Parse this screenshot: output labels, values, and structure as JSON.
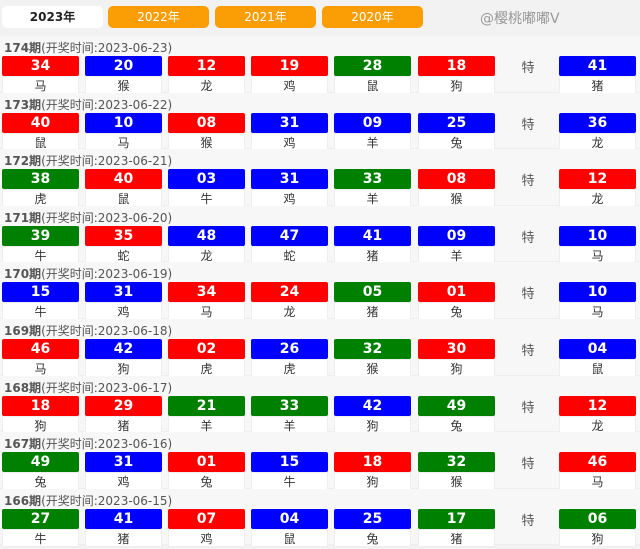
{
  "colors": {
    "red": "#ff0000",
    "blue": "#0000ff",
    "green": "#008000",
    "tab_orange": "#fb9d05"
  },
  "tabs": [
    {
      "label": "2023年",
      "active": true
    },
    {
      "label": "2022年"
    },
    {
      "label": "2021年"
    },
    {
      "label": "2020年"
    }
  ],
  "special_label": "特",
  "draws": [
    {
      "period": "174期",
      "time": "(开奖时间:2023-06-23)",
      "balls": [
        [
          "34",
          "red",
          "马"
        ],
        [
          "20",
          "blue",
          "猴"
        ],
        [
          "12",
          "red",
          "龙"
        ],
        [
          "19",
          "red",
          "鸡"
        ],
        [
          "28",
          "green",
          "鼠"
        ],
        [
          "18",
          "red",
          "狗"
        ]
      ],
      "special": [
        "41",
        "blue",
        "猪"
      ]
    },
    {
      "period": "173期",
      "time": "(开奖时间:2023-06-22)",
      "balls": [
        [
          "40",
          "red",
          "鼠"
        ],
        [
          "10",
          "blue",
          "马"
        ],
        [
          "08",
          "red",
          "猴"
        ],
        [
          "31",
          "blue",
          "鸡"
        ],
        [
          "09",
          "blue",
          "羊"
        ],
        [
          "25",
          "blue",
          "兔"
        ]
      ],
      "special": [
        "36",
        "blue",
        "龙"
      ]
    },
    {
      "period": "172期",
      "time": "(开奖时间:2023-06-21)",
      "balls": [
        [
          "38",
          "green",
          "虎"
        ],
        [
          "40",
          "red",
          "鼠"
        ],
        [
          "03",
          "blue",
          "牛"
        ],
        [
          "31",
          "blue",
          "鸡"
        ],
        [
          "33",
          "green",
          "羊"
        ],
        [
          "08",
          "red",
          "猴"
        ]
      ],
      "special": [
        "12",
        "red",
        "龙"
      ]
    },
    {
      "period": "171期",
      "time": "(开奖时间:2023-06-20)",
      "balls": [
        [
          "39",
          "green",
          "牛"
        ],
        [
          "35",
          "red",
          "蛇"
        ],
        [
          "48",
          "blue",
          "龙"
        ],
        [
          "47",
          "blue",
          "蛇"
        ],
        [
          "41",
          "blue",
          "猪"
        ],
        [
          "09",
          "blue",
          "羊"
        ]
      ],
      "special": [
        "10",
        "blue",
        "马"
      ]
    },
    {
      "period": "170期",
      "time": "(开奖时间:2023-06-19)",
      "balls": [
        [
          "15",
          "blue",
          "牛"
        ],
        [
          "31",
          "blue",
          "鸡"
        ],
        [
          "34",
          "red",
          "马"
        ],
        [
          "24",
          "red",
          "龙"
        ],
        [
          "05",
          "green",
          "猪"
        ],
        [
          "01",
          "red",
          "兔"
        ]
      ],
      "special": [
        "10",
        "blue",
        "马"
      ]
    },
    {
      "period": "169期",
      "time": "(开奖时间:2023-06-18)",
      "balls": [
        [
          "46",
          "red",
          "马"
        ],
        [
          "42",
          "blue",
          "狗"
        ],
        [
          "02",
          "red",
          "虎"
        ],
        [
          "26",
          "blue",
          "虎"
        ],
        [
          "32",
          "green",
          "猴"
        ],
        [
          "30",
          "red",
          "狗"
        ]
      ],
      "special": [
        "04",
        "blue",
        "鼠"
      ]
    },
    {
      "period": "168期",
      "time": "(开奖时间:2023-06-17)",
      "balls": [
        [
          "18",
          "red",
          "狗"
        ],
        [
          "29",
          "red",
          "猪"
        ],
        [
          "21",
          "green",
          "羊"
        ],
        [
          "33",
          "green",
          "羊"
        ],
        [
          "42",
          "blue",
          "狗"
        ],
        [
          "49",
          "green",
          "兔"
        ]
      ],
      "special": [
        "12",
        "red",
        "龙"
      ]
    },
    {
      "period": "167期",
      "time": "(开奖时间:2023-06-16)",
      "balls": [
        [
          "49",
          "green",
          "兔"
        ],
        [
          "31",
          "blue",
          "鸡"
        ],
        [
          "01",
          "red",
          "兔"
        ],
        [
          "15",
          "blue",
          "牛"
        ],
        [
          "18",
          "red",
          "狗"
        ],
        [
          "32",
          "green",
          "猴"
        ]
      ],
      "special": [
        "46",
        "red",
        "马"
      ]
    },
    {
      "period": "166期",
      "time": "(开奖时间:2023-06-15)",
      "balls": [
        [
          "27",
          "green",
          "牛"
        ],
        [
          "41",
          "blue",
          "猪"
        ],
        [
          "07",
          "red",
          "鸡"
        ],
        [
          "04",
          "blue",
          "鼠"
        ],
        [
          "25",
          "blue",
          "兔"
        ],
        [
          "17",
          "green",
          "猪"
        ]
      ],
      "special": [
        "06",
        "green",
        "狗"
      ]
    }
  ],
  "watermark": "@樱桃嘟嘟V"
}
